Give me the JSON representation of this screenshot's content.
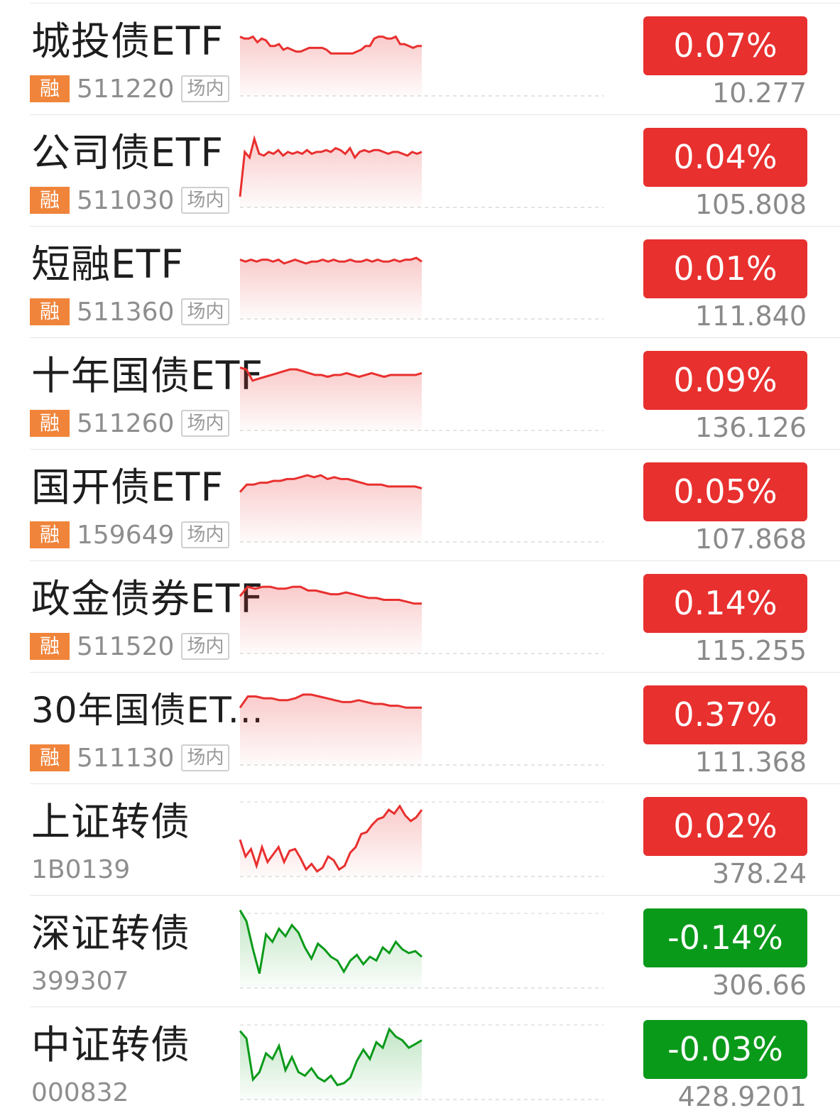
{
  "colors": {
    "up": "#e8302f",
    "down": "#0a9a1a",
    "rong_badge": "#f0843a"
  },
  "rows": [
    {
      "name": "城投债ETF",
      "code": "511220",
      "rong": "融",
      "tag": "场内",
      "change": "0.07%",
      "price": "10.277",
      "dir": "up",
      "spark": [
        62,
        60,
        60,
        62,
        56,
        60,
        58,
        52,
        52,
        54,
        48,
        50,
        48,
        46,
        46,
        48,
        50,
        50,
        50,
        50,
        48,
        44,
        44,
        44,
        44,
        44,
        44,
        46,
        48,
        52,
        52,
        60,
        62,
        62,
        60,
        60,
        62,
        54,
        54,
        52,
        50,
        52,
        52
      ]
    },
    {
      "name": "公司债ETF",
      "code": "511030",
      "rong": "融",
      "tag": "场内",
      "change": "0.04%",
      "price": "105.808",
      "dir": "up",
      "spark": [
        10,
        58,
        52,
        72,
        56,
        54,
        58,
        56,
        60,
        54,
        58,
        56,
        58,
        56,
        60,
        56,
        58,
        58,
        60,
        58,
        62,
        60,
        56,
        62,
        52,
        58,
        60,
        58,
        60,
        60,
        58,
        56,
        58,
        58,
        56,
        54,
        58,
        56,
        58
      ]
    },
    {
      "name": "短融ETF",
      "code": "511360",
      "rong": "融",
      "tag": "场内",
      "change": "0.01%",
      "price": "111.840",
      "dir": "up",
      "spark": [
        62,
        60,
        62,
        60,
        62,
        62,
        60,
        62,
        58,
        60,
        62,
        60,
        58,
        60,
        60,
        62,
        60,
        62,
        60,
        60,
        62,
        60,
        60,
        62,
        60,
        62,
        60,
        60,
        62,
        60,
        62,
        62,
        64,
        60
      ]
    },
    {
      "name": "十年国债ETF",
      "code": "511260",
      "rong": "融",
      "tag": "场内",
      "change": "0.09%",
      "price": "136.126",
      "dir": "up",
      "spark": [
        66,
        64,
        52,
        54,
        56,
        58,
        60,
        62,
        64,
        64,
        62,
        60,
        58,
        58,
        56,
        58,
        58,
        60,
        58,
        56,
        58,
        60,
        58,
        56,
        58,
        58,
        58,
        58,
        58,
        60
      ]
    },
    {
      "name": "国开债ETF",
      "code": "159649",
      "rong": "融",
      "tag": "场内",
      "change": "0.05%",
      "price": "107.868",
      "dir": "up",
      "spark": [
        52,
        60,
        60,
        62,
        62,
        64,
        64,
        66,
        66,
        68,
        70,
        68,
        70,
        66,
        68,
        66,
        66,
        64,
        62,
        60,
        60,
        60,
        58,
        58,
        58,
        58,
        58,
        56
      ]
    },
    {
      "name": "政金债券ETF",
      "code": "511520",
      "rong": "融",
      "tag": "场内",
      "change": "0.14%",
      "price": "115.255",
      "dir": "up",
      "spark": [
        60,
        70,
        68,
        70,
        70,
        68,
        68,
        70,
        70,
        66,
        66,
        64,
        62,
        62,
        64,
        62,
        60,
        58,
        58,
        56,
        56,
        56,
        54,
        52,
        52
      ]
    },
    {
      "name": "30年国债ET...",
      "code": "511130",
      "rong": "融",
      "tag": "场内",
      "change": "0.37%",
      "price": "111.368",
      "dir": "up",
      "small": true,
      "spark": [
        60,
        72,
        72,
        70,
        70,
        68,
        68,
        70,
        74,
        74,
        72,
        70,
        68,
        66,
        66,
        68,
        66,
        64,
        64,
        62,
        62,
        60,
        60,
        60
      ]
    },
    {
      "name": "上证转债",
      "code": "1B0139",
      "change": "0.02%",
      "price": "378.24",
      "dir": "up",
      "spark": [
        38,
        20,
        28,
        10,
        30,
        14,
        22,
        30,
        14,
        26,
        28,
        18,
        6,
        12,
        4,
        8,
        20,
        16,
        6,
        10,
        24,
        30,
        44,
        46,
        54,
        60,
        62,
        70,
        66,
        74,
        64,
        58,
        62,
        70
      ]
    },
    {
      "name": "深证转债",
      "code": "399307",
      "change": "-0.14%",
      "price": "306.66",
      "dir": "down",
      "spark": [
        82,
        70,
        40,
        14,
        56,
        48,
        62,
        54,
        66,
        58,
        42,
        30,
        46,
        40,
        32,
        28,
        16,
        28,
        34,
        24,
        32,
        28,
        42,
        36,
        48,
        40,
        36,
        38,
        32
      ]
    },
    {
      "name": "中证转债",
      "code": "000832",
      "change": "-0.03%",
      "price": "428.9201",
      "dir": "down",
      "spark": [
        72,
        64,
        20,
        28,
        48,
        42,
        56,
        30,
        44,
        28,
        24,
        32,
        22,
        18,
        24,
        14,
        16,
        22,
        40,
        52,
        42,
        60,
        54,
        74,
        66,
        62,
        54,
        58,
        62
      ]
    }
  ]
}
